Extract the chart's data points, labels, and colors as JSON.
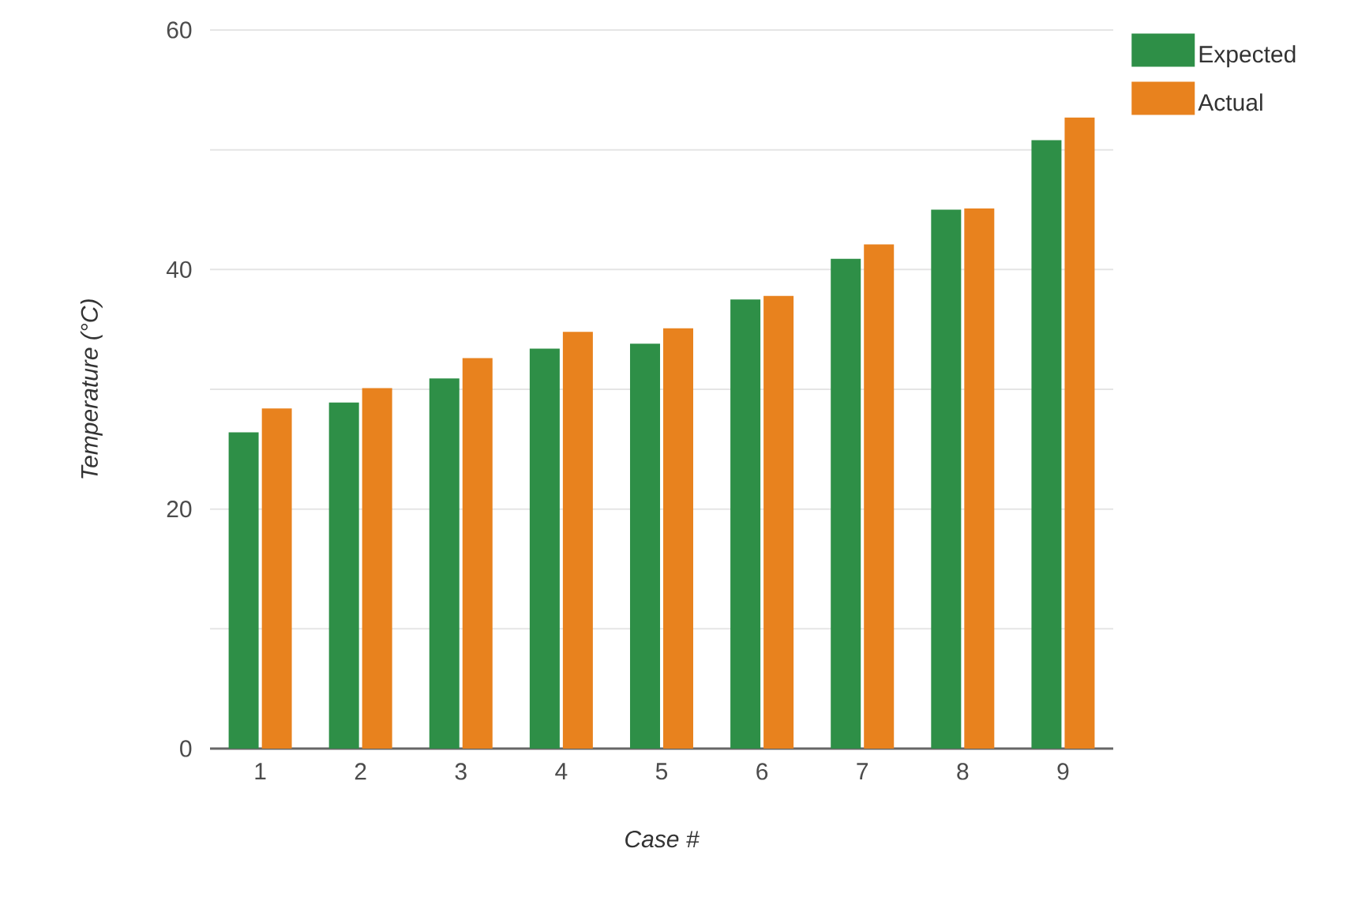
{
  "chart_data": {
    "type": "bar",
    "xlabel": "Case #",
    "ylabel": "Temperature (°C)",
    "categories": [
      "1",
      "2",
      "3",
      "4",
      "5",
      "6",
      "7",
      "8",
      "9"
    ],
    "series": [
      {
        "name": "Expected",
        "color": "#2e8f47",
        "values": [
          26.4,
          28.9,
          30.9,
          33.4,
          33.8,
          37.5,
          40.9,
          45.0,
          50.8
        ]
      },
      {
        "name": "Actual",
        "color": "#e8821e",
        "values": [
          28.4,
          30.1,
          32.6,
          34.8,
          35.1,
          37.8,
          42.1,
          45.1,
          52.7
        ]
      }
    ],
    "ylim": [
      0,
      60
    ],
    "yticks": [
      0,
      {
        "value": 10,
        "label": null
      },
      20,
      {
        "value": 30,
        "label": null
      },
      40,
      {
        "value": 50,
        "label": null
      },
      60
    ],
    "grid": "y",
    "legend": "top right"
  }
}
